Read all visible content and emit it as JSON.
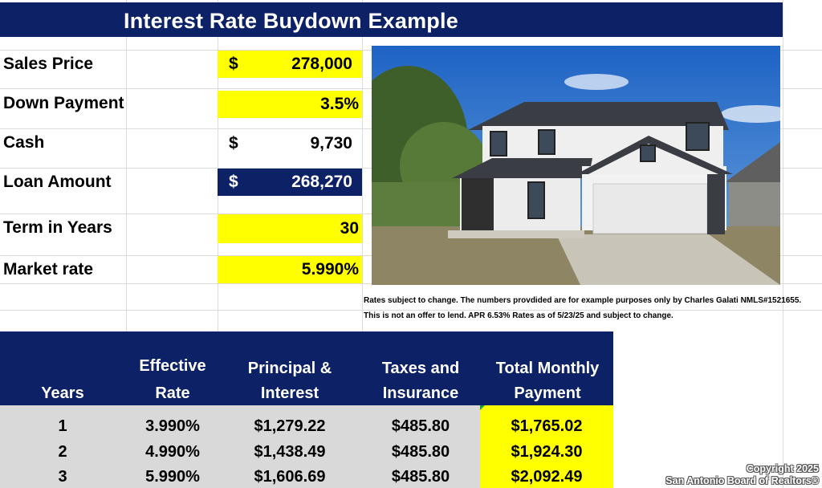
{
  "title": "Interest Rate Buydown Example",
  "inputs": {
    "sales_price": {
      "label": "Sales Price",
      "symbol": "$",
      "value": "278,000"
    },
    "down_payment": {
      "label": "Down Payment",
      "value": "3.5%"
    },
    "cash": {
      "label": "Cash",
      "symbol": "$",
      "value": "9,730"
    },
    "loan_amount": {
      "label": "Loan Amount",
      "symbol": "$",
      "value": "268,270"
    },
    "term": {
      "label": "Term in Years",
      "value": "30"
    },
    "market_rate": {
      "label": "Market rate",
      "value": "5.990%"
    }
  },
  "disclaimer": {
    "line1": "Rates subject to change. The numbers provdided are for example purposes only by Charles Galati NMLS#1521655.",
    "line2": "This is not an offer to lend. APR 6.53% Rates as of 5/23/25 and subject to change."
  },
  "table": {
    "headers": {
      "years": "Years",
      "rate_1": "Effective",
      "rate_2": "Rate",
      "pi_1": "Principal &",
      "pi_2": "Interest",
      "ti_1": "Taxes and",
      "ti_2": "Insurance",
      "total_1": "Total Monthly",
      "total_2": "Payment"
    },
    "rows": [
      {
        "years": "1",
        "rate": "3.990%",
        "pi": "$1,279.22",
        "ti": "$485.80",
        "total": "$1,765.02"
      },
      {
        "years": "2",
        "rate": "4.990%",
        "pi": "$1,438.49",
        "ti": "$485.80",
        "total": "$1,924.30"
      },
      {
        "years": "3",
        "rate": "5.990%",
        "pi": "$1,606.69",
        "ti": "$485.80",
        "total": "$2,092.49"
      }
    ]
  },
  "watermark": {
    "line1": "Copyright 2025",
    "line2": "San Antonio Board of Realtors®"
  },
  "colors": {
    "navy": "#0d2167",
    "highlight": "#ffff00"
  }
}
